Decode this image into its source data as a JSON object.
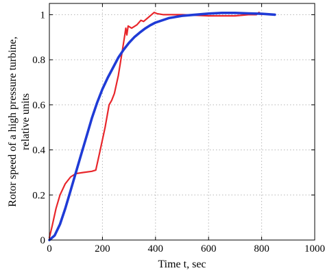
{
  "chart_data": {
    "type": "line",
    "xlabel": "Time t, sec",
    "ylabel_lines": [
      "Rotor speed of a high pressure turbine,",
      "relative units"
    ],
    "xlim": [
      0,
      1000
    ],
    "ylim": [
      0,
      1.05
    ],
    "x_ticks": [
      0,
      200,
      400,
      600,
      800,
      1000
    ],
    "y_ticks": [
      0,
      0.2,
      0.4,
      0.6,
      0.8,
      1
    ],
    "x_tick_labels": [
      "0",
      "200",
      "400",
      "600",
      "800",
      "1000"
    ],
    "y_tick_labels": [
      "0",
      "0.2",
      "0.4",
      "0.6",
      "0.8",
      "1"
    ],
    "grid": true,
    "series": [
      {
        "color": "#e8262b",
        "line_width": 2.2,
        "points": [
          [
            0,
            0.01
          ],
          [
            10,
            0.06
          ],
          [
            25,
            0.14
          ],
          [
            40,
            0.2
          ],
          [
            60,
            0.25
          ],
          [
            80,
            0.28
          ],
          [
            100,
            0.295
          ],
          [
            130,
            0.3
          ],
          [
            160,
            0.305
          ],
          [
            175,
            0.31
          ],
          [
            190,
            0.39
          ],
          [
            210,
            0.5
          ],
          [
            225,
            0.6
          ],
          [
            235,
            0.62
          ],
          [
            245,
            0.65
          ],
          [
            260,
            0.73
          ],
          [
            275,
            0.84
          ],
          [
            283,
            0.9
          ],
          [
            288,
            0.94
          ],
          [
            292,
            0.91
          ],
          [
            297,
            0.95
          ],
          [
            310,
            0.94
          ],
          [
            330,
            0.955
          ],
          [
            345,
            0.975
          ],
          [
            355,
            0.97
          ],
          [
            370,
            0.985
          ],
          [
            385,
            1.0
          ],
          [
            395,
            1.01
          ],
          [
            405,
            1.005
          ],
          [
            430,
            1.0
          ],
          [
            500,
            1.0
          ],
          [
            600,
            0.995
          ],
          [
            700,
            0.995
          ],
          [
            750,
            1.0
          ],
          [
            780,
            1.0
          ],
          [
            790,
            1.01
          ],
          [
            800,
            1.0
          ]
        ]
      },
      {
        "color": "#1f3bd6",
        "line_width": 3.6,
        "points": [
          [
            0,
            0.0
          ],
          [
            20,
            0.02
          ],
          [
            40,
            0.07
          ],
          [
            60,
            0.14
          ],
          [
            80,
            0.22
          ],
          [
            100,
            0.3
          ],
          [
            120,
            0.38
          ],
          [
            140,
            0.46
          ],
          [
            160,
            0.54
          ],
          [
            180,
            0.61
          ],
          [
            200,
            0.67
          ],
          [
            220,
            0.72
          ],
          [
            240,
            0.765
          ],
          [
            260,
            0.81
          ],
          [
            280,
            0.845
          ],
          [
            300,
            0.875
          ],
          [
            320,
            0.9
          ],
          [
            340,
            0.92
          ],
          [
            360,
            0.938
          ],
          [
            380,
            0.953
          ],
          [
            400,
            0.965
          ],
          [
            450,
            0.985
          ],
          [
            500,
            0.995
          ],
          [
            550,
            1.0
          ],
          [
            600,
            1.005
          ],
          [
            650,
            1.008
          ],
          [
            700,
            1.008
          ],
          [
            750,
            1.006
          ],
          [
            800,
            1.004
          ],
          [
            850,
            1.0
          ]
        ]
      }
    ]
  }
}
